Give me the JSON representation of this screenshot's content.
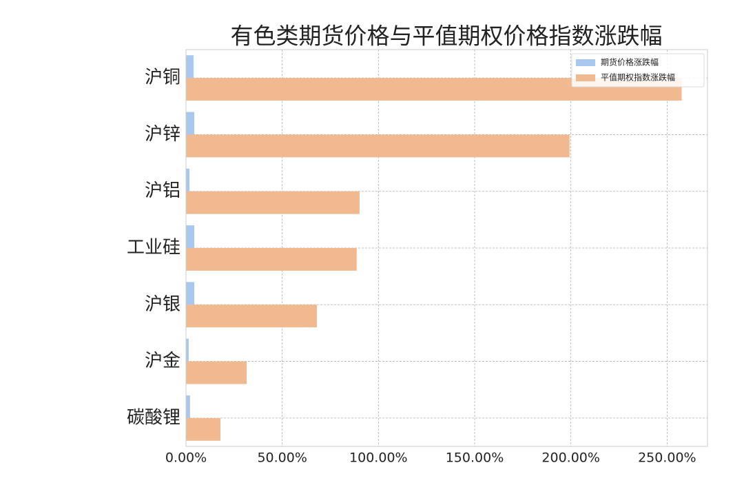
{
  "chart_data": {
    "type": "barh",
    "title": "有色类期货价格与平值期权价格指数涨跌幅",
    "categories": [
      "沪铜",
      "沪锌",
      "沪铝",
      "工业硅",
      "沪银",
      "沪金",
      "碳酸锂"
    ],
    "series": [
      {
        "name": "期货价格涨跌幅",
        "color": "#a8c8ef",
        "values": [
          3.9,
          4.3,
          1.8,
          4.3,
          4.3,
          1.4,
          2.1
        ]
      },
      {
        "name": "平值期权指数涨跌幅",
        "color": "#f0b990",
        "values": [
          257.6,
          199.3,
          90.2,
          88.7,
          68.0,
          31.5,
          17.9
        ]
      }
    ],
    "xlim": [
      0,
      271
    ],
    "xticks": [
      {
        "value": 0,
        "label": "0.00%"
      },
      {
        "value": 50,
        "label": "50.00%"
      },
      {
        "value": 100,
        "label": "100.00%"
      },
      {
        "value": 150,
        "label": "150.00%"
      },
      {
        "value": 200,
        "label": "200.00%"
      },
      {
        "value": 250,
        "label": "250.00%"
      }
    ],
    "grid": true,
    "legend": "upper right"
  }
}
